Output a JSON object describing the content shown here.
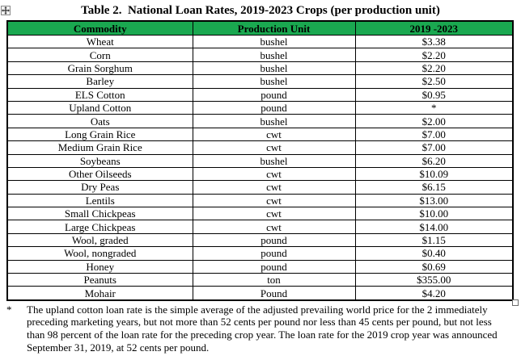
{
  "doc": {
    "title": "Table 2.  National Loan Rates, 2019-2023 Crops (per production unit)"
  },
  "colors": {
    "header_green": "#1AA850",
    "border_black": "#000000"
  },
  "icons": {
    "table_move_handle": "four-way-arrow-icon",
    "table_resize_handle": "small-square-handle"
  },
  "table": {
    "headers": [
      "Commodity",
      "Production Unit",
      "2019 -2023"
    ],
    "rows": [
      [
        "Wheat",
        "bushel",
        "$3.38"
      ],
      [
        "Corn",
        "bushel",
        "$2.20"
      ],
      [
        "Grain Sorghum",
        "bushel",
        "$2.20"
      ],
      [
        "Barley",
        "bushel",
        "$2.50"
      ],
      [
        "ELS Cotton",
        "pound",
        "$0.95"
      ],
      [
        "Upland Cotton",
        "pound",
        "*"
      ],
      [
        "Oats",
        "bushel",
        "$2.00"
      ],
      [
        "Long Grain Rice",
        "cwt",
        "$7.00"
      ],
      [
        "Medium Grain Rice",
        "cwt",
        "$7.00"
      ],
      [
        "Soybeans",
        "bushel",
        "$6.20"
      ],
      [
        "Other Oilseeds",
        "cwt",
        "$10.09"
      ],
      [
        "Dry Peas",
        "cwt",
        "$6.15"
      ],
      [
        "Lentils",
        "cwt",
        "$13.00"
      ],
      [
        "Small Chickpeas",
        "cwt",
        "$10.00"
      ],
      [
        "Large Chickpeas",
        "cwt",
        "$14.00"
      ],
      [
        "Wool, graded",
        "pound",
        "$1.15"
      ],
      [
        "Wool, nongraded",
        "pound",
        "$0.40"
      ],
      [
        "Honey",
        "pound",
        "$0.69"
      ],
      [
        "Peanuts",
        "ton",
        "$355.00"
      ],
      [
        "Mohair",
        "Pound",
        "$4.20"
      ]
    ]
  },
  "footnote": {
    "marker": "*",
    "lines": [
      "The upland cotton loan rate is the simple average of the adjusted prevailing world price for the 2 immediately",
      "preceding marketing years, but not more than 52 cents per pound nor less than 45 cents per pound, but not less",
      "than 98 percent of the loan rate for the preceding crop year. The loan rate for the 2019 crop year was announced",
      "September 31, 2019, at 52 cents per pound."
    ]
  }
}
